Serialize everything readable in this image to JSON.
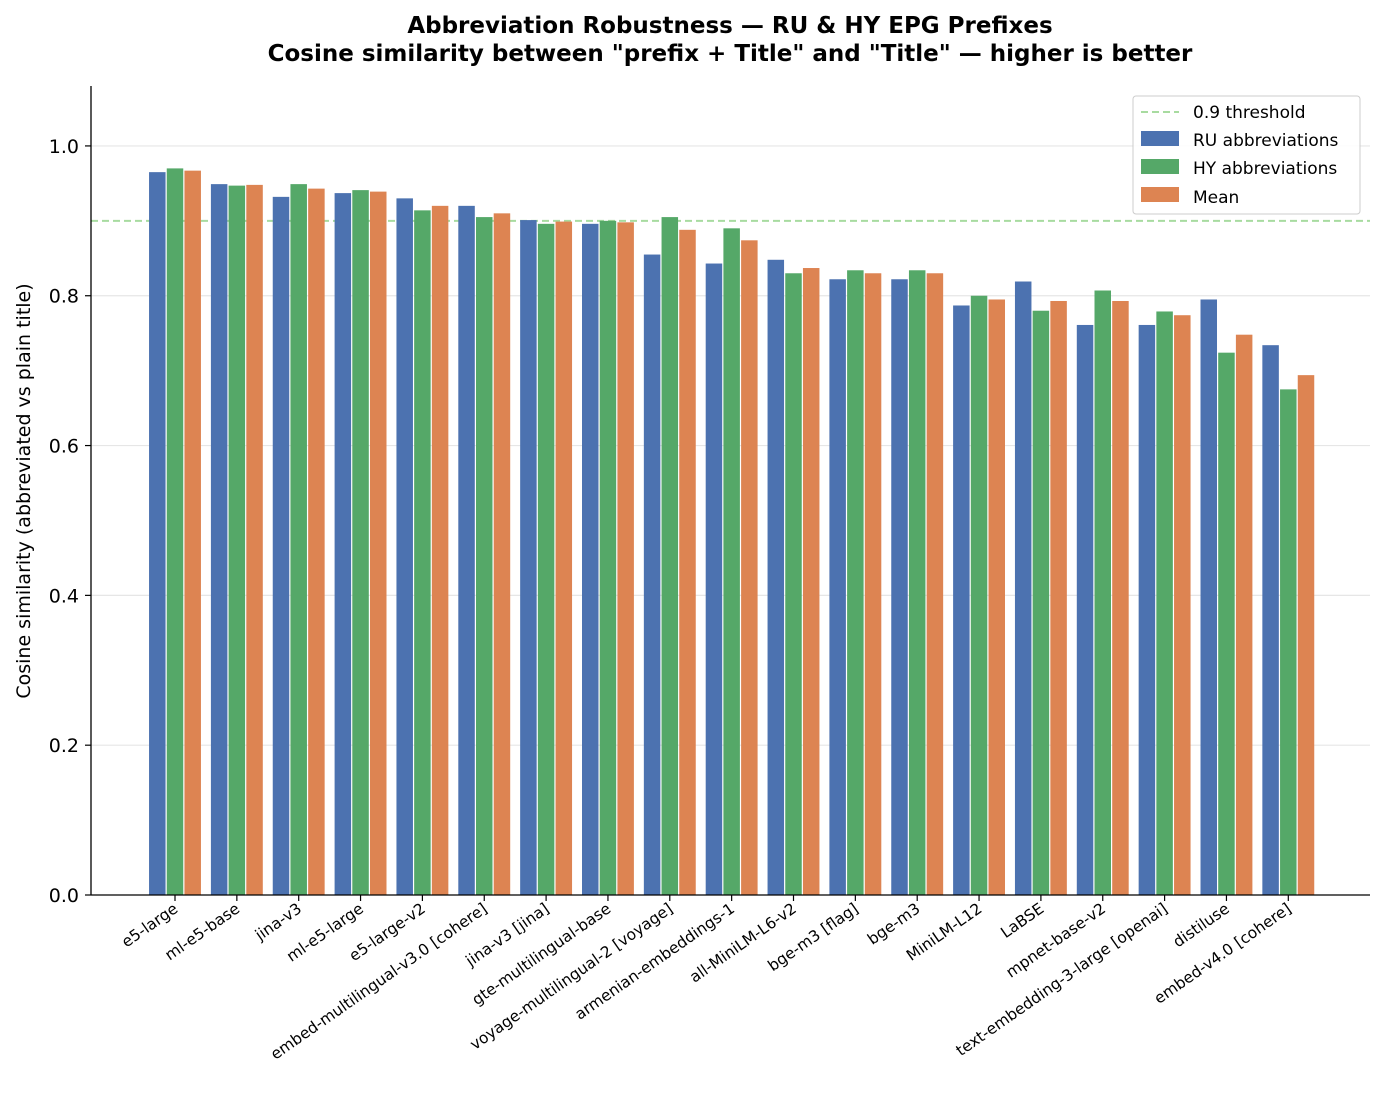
{
  "chart_data": {
    "type": "bar",
    "title": "Abbreviation Robustness — RU & HY EPG Prefixes",
    "subtitle": "Cosine similarity between \"prefix + Title\" and \"Title\" — higher is better",
    "xlabel": "",
    "ylabel": "Cosine similarity (abbreviated vs plain title)",
    "ylim": [
      0,
      1.08
    ],
    "yticks": [
      0.0,
      0.2,
      0.4,
      0.6,
      0.8,
      1.0
    ],
    "ytick_labels": [
      "0.0",
      "0.2",
      "0.4",
      "0.6",
      "0.8",
      "1.0"
    ],
    "grid": "horizontal",
    "legend_position": "top-right",
    "threshold": {
      "value": 0.9,
      "label": "0.9 threshold",
      "color": "#a8dba0"
    },
    "categories": [
      "e5-large",
      "ml-e5-base",
      "jina-v3",
      "ml-e5-large",
      "e5-large-v2",
      "embed-multilingual-v3.0 [cohere]",
      "jina-v3 [jina]",
      "gte-multilingual-base",
      "voyage-multilingual-2 [voyage]",
      "armenian-embeddings-1",
      "all-MiniLM-L6-v2",
      "bge-m3 [flag]",
      "bge-m3",
      "MiniLM-L12",
      "LaBSE",
      "mpnet-base-v2",
      "text-embedding-3-large [openai]",
      "distiluse",
      "embed-v4.0 [cohere]"
    ],
    "series": [
      {
        "name": "RU abbreviations",
        "color": "#4c72b0",
        "values": [
          0.965,
          0.949,
          0.932,
          0.937,
          0.93,
          0.92,
          0.901,
          0.896,
          0.855,
          0.843,
          0.848,
          0.822,
          0.822,
          0.787,
          0.819,
          0.761,
          0.761,
          0.795,
          0.734
        ]
      },
      {
        "name": "HY abbreviations",
        "color": "#55a868",
        "values": [
          0.97,
          0.947,
          0.949,
          0.941,
          0.914,
          0.905,
          0.896,
          0.9,
          0.905,
          0.89,
          0.83,
          0.834,
          0.834,
          0.8,
          0.78,
          0.807,
          0.779,
          0.724,
          0.675
        ]
      },
      {
        "name": "Mean",
        "color": "#dd8452",
        "values": [
          0.967,
          0.948,
          0.943,
          0.939,
          0.92,
          0.91,
          0.899,
          0.898,
          0.888,
          0.874,
          0.837,
          0.83,
          0.83,
          0.795,
          0.793,
          0.793,
          0.774,
          0.748,
          0.694
        ]
      }
    ]
  }
}
